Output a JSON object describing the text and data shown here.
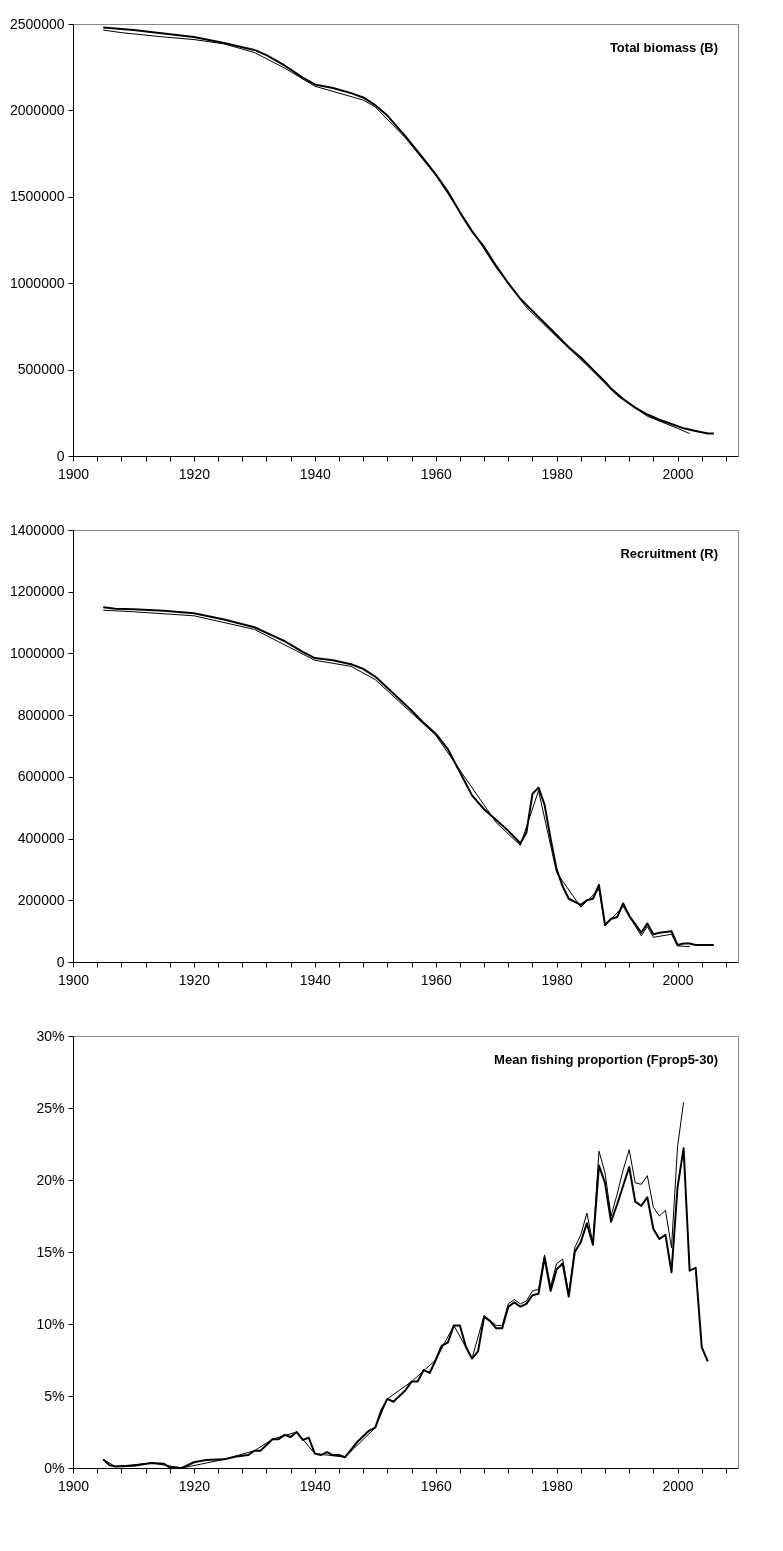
{
  "chart_data": [
    {
      "type": "line",
      "title": "Total biomass (B)",
      "xlim": [
        1900,
        2010
      ],
      "xticks": [
        1900,
        {
          "value": 1904,
          "label": null
        },
        {
          "value": 1908,
          "label": null
        },
        {
          "value": 1912,
          "label": null
        },
        {
          "value": 1916,
          "label": null
        },
        1920,
        {
          "value": 1924,
          "label": null
        },
        {
          "value": 1928,
          "label": null
        },
        {
          "value": 1932,
          "label": null
        },
        {
          "value": 1936,
          "label": null
        },
        1940,
        {
          "value": 1944,
          "label": null
        },
        {
          "value": 1948,
          "label": null
        },
        {
          "value": 1952,
          "label": null
        },
        {
          "value": 1956,
          "label": null
        },
        1960,
        {
          "value": 1964,
          "label": null
        },
        {
          "value": 1968,
          "label": null
        },
        {
          "value": 1972,
          "label": null
        },
        {
          "value": 1976,
          "label": null
        },
        1980,
        {
          "value": 1984,
          "label": null
        },
        {
          "value": 1988,
          "label": null
        },
        {
          "value": 1992,
          "label": null
        },
        {
          "value": 1996,
          "label": null
        },
        2000,
        {
          "value": 2004,
          "label": null
        },
        {
          "value": 2008,
          "label": null
        }
      ],
      "ylim": [
        0,
        2500000
      ],
      "yticks": [
        0,
        500000,
        1000000,
        1500000,
        2000000,
        2500000
      ],
      "grid": false,
      "marker": "none",
      "line_style": "solid",
      "series": [
        {
          "color": "#000000",
          "x": [
            1905,
            1910,
            1915,
            1920,
            1925,
            1930,
            1932,
            1935,
            1938,
            1940,
            1943,
            1946,
            1948,
            1950,
            1952,
            1955,
            1958,
            1960,
            1962,
            1964,
            1966,
            1968,
            1970,
            1972,
            1974,
            1976,
            1978,
            1980,
            1982,
            1984,
            1986,
            1988,
            1989,
            1991,
            1993,
            1995,
            1997,
            1999,
            2001,
            2003,
            2005,
            2006
          ],
          "values": [
            2480000,
            2465000,
            2445000,
            2425000,
            2390000,
            2350000,
            2320000,
            2260000,
            2190000,
            2150000,
            2130000,
            2100000,
            2075000,
            2030000,
            1970000,
            1850000,
            1720000,
            1630000,
            1530000,
            1410000,
            1300000,
            1210000,
            1100000,
            1000000,
            910000,
            840000,
            770000,
            700000,
            630000,
            570000,
            500000,
            430000,
            390000,
            330000,
            280000,
            240000,
            210000,
            185000,
            160000,
            145000,
            130000,
            130000
          ]
        },
        {
          "color": "#000000",
          "x": [
            1905,
            1908,
            1915,
            1920,
            1925,
            1930,
            1935,
            1940,
            1945,
            1948,
            1950,
            1955,
            1960,
            1965,
            1970,
            1975,
            1980,
            1985,
            1990,
            1995,
            2000,
            2002
          ],
          "values": [
            2465000,
            2450000,
            2425000,
            2410000,
            2385000,
            2335000,
            2245000,
            2140000,
            2090000,
            2060000,
            2020000,
            1840000,
            1625000,
            1360000,
            1090000,
            860000,
            690000,
            525000,
            350000,
            230000,
            160000,
            130000
          ]
        }
      ]
    },
    {
      "type": "line",
      "title": "Recruitment (R)",
      "xlim": [
        1900,
        2010
      ],
      "xticks": [
        1900,
        {
          "value": 1904,
          "label": null
        },
        {
          "value": 1908,
          "label": null
        },
        {
          "value": 1912,
          "label": null
        },
        {
          "value": 1916,
          "label": null
        },
        1920,
        {
          "value": 1924,
          "label": null
        },
        {
          "value": 1928,
          "label": null
        },
        {
          "value": 1932,
          "label": null
        },
        {
          "value": 1936,
          "label": null
        },
        1940,
        {
          "value": 1944,
          "label": null
        },
        {
          "value": 1948,
          "label": null
        },
        {
          "value": 1952,
          "label": null
        },
        {
          "value": 1956,
          "label": null
        },
        1960,
        {
          "value": 1964,
          "label": null
        },
        {
          "value": 1968,
          "label": null
        },
        {
          "value": 1972,
          "label": null
        },
        {
          "value": 1976,
          "label": null
        },
        1980,
        {
          "value": 1984,
          "label": null
        },
        {
          "value": 1988,
          "label": null
        },
        {
          "value": 1992,
          "label": null
        },
        {
          "value": 1996,
          "label": null
        },
        2000,
        {
          "value": 2004,
          "label": null
        },
        {
          "value": 2008,
          "label": null
        }
      ],
      "ylim": [
        0,
        1400000
      ],
      "yticks": [
        0,
        200000,
        400000,
        600000,
        800000,
        1000000,
        1200000,
        1400000
      ],
      "grid": false,
      "marker": "none",
      "line_style": "solid",
      "series": [
        {
          "color": "#000000",
          "x": [
            1905,
            1907,
            1910,
            1915,
            1920,
            1925,
            1930,
            1935,
            1938,
            1940,
            1943,
            1946,
            1948,
            1950,
            1953,
            1956,
            1958,
            1960,
            1962,
            1964,
            1966,
            1968,
            1970,
            1972,
            1974,
            1975,
            1976,
            1977,
            1978,
            1979,
            1980,
            1981,
            1982,
            1984,
            1985,
            1986,
            1987,
            1988,
            1989,
            1990,
            1991,
            1992,
            1994,
            1995,
            1996,
            1997,
            1999,
            2000,
            2001,
            2002,
            2003,
            2006
          ],
          "values": [
            1150000,
            1145000,
            1143000,
            1138000,
            1130000,
            1110000,
            1085000,
            1040000,
            1005000,
            985000,
            978000,
            965000,
            950000,
            925000,
            870000,
            815000,
            775000,
            740000,
            690000,
            615000,
            540000,
            495000,
            460000,
            425000,
            385000,
            420000,
            545000,
            565000,
            510000,
            400000,
            300000,
            245000,
            205000,
            185000,
            200000,
            205000,
            250000,
            120000,
            140000,
            145000,
            190000,
            150000,
            95000,
            125000,
            90000,
            95000,
            100000,
            55000,
            60000,
            60000,
            55000,
            55000
          ]
        },
        {
          "color": "#000000",
          "x": [
            1905,
            1910,
            1920,
            1930,
            1940,
            1946,
            1950,
            1960,
            1970,
            1974,
            1977,
            1980,
            1984,
            1987,
            1988,
            1991,
            1994,
            1995,
            1996,
            1999,
            2000,
            2002
          ],
          "values": [
            1140000,
            1135000,
            1122000,
            1078000,
            978000,
            958000,
            915000,
            735000,
            452000,
            378000,
            555000,
            290000,
            178000,
            235000,
            118000,
            180000,
            85000,
            115000,
            80000,
            90000,
            52000,
            50000
          ]
        }
      ]
    },
    {
      "type": "line",
      "title": "Mean fishing proportion (Fprop5-30)",
      "xlim": [
        1900,
        2010
      ],
      "xticks": [
        1900,
        {
          "value": 1904,
          "label": null
        },
        {
          "value": 1908,
          "label": null
        },
        {
          "value": 1912,
          "label": null
        },
        {
          "value": 1916,
          "label": null
        },
        1920,
        {
          "value": 1924,
          "label": null
        },
        {
          "value": 1928,
          "label": null
        },
        {
          "value": 1932,
          "label": null
        },
        {
          "value": 1936,
          "label": null
        },
        1940,
        {
          "value": 1944,
          "label": null
        },
        {
          "value": 1948,
          "label": null
        },
        {
          "value": 1952,
          "label": null
        },
        {
          "value": 1956,
          "label": null
        },
        1960,
        {
          "value": 1964,
          "label": null
        },
        {
          "value": 1968,
          "label": null
        },
        {
          "value": 1972,
          "label": null
        },
        {
          "value": 1976,
          "label": null
        },
        1980,
        {
          "value": 1984,
          "label": null
        },
        {
          "value": 1988,
          "label": null
        },
        {
          "value": 1992,
          "label": null
        },
        {
          "value": 1996,
          "label": null
        },
        2000,
        {
          "value": 2004,
          "label": null
        },
        {
          "value": 2008,
          "label": null
        }
      ],
      "ylim": [
        0,
        30
      ],
      "yticks": [
        {
          "value": 0,
          "label": "0%"
        },
        {
          "value": 5,
          "label": "5%"
        },
        {
          "value": 10,
          "label": "10%"
        },
        {
          "value": 15,
          "label": "15%"
        },
        {
          "value": 20,
          "label": "20%"
        },
        {
          "value": 25,
          "label": "25%"
        },
        {
          "value": 30,
          "label": "30%"
        }
      ],
      "grid": false,
      "marker": "none",
      "line_style": "solid",
      "series": [
        {
          "color": "#000000",
          "x": [
            1905,
            1906,
            1907,
            1910,
            1913,
            1915,
            1916,
            1918,
            1920,
            1922,
            1925,
            1927,
            1929,
            1930,
            1931,
            1933,
            1934,
            1935,
            1936,
            1937,
            1938,
            1939,
            1940,
            1941,
            1942,
            1943,
            1944,
            1945,
            1947,
            1948,
            1949,
            1950,
            1951,
            1952,
            1953,
            1954,
            1955,
            1956,
            1957,
            1958,
            1959,
            1960,
            1961,
            1962,
            1963,
            1964,
            1965,
            1966,
            1967,
            1968,
            1969,
            1970,
            1971,
            1972,
            1973,
            1974,
            1975,
            1976,
            1977,
            1978,
            1979,
            1980,
            1981,
            1982,
            1983,
            1984,
            1985,
            1986,
            1987,
            1988,
            1989,
            1990,
            1991,
            1992,
            1993,
            1994,
            1995,
            1996,
            1997,
            1998,
            1999,
            2000,
            2001,
            2002,
            2003,
            2004,
            2005
          ],
          "values": [
            0.6,
            0.2,
            0.1,
            0.15,
            0.35,
            0.3,
            0.05,
            0.0,
            0.4,
            0.55,
            0.6,
            0.8,
            0.9,
            1.2,
            1.2,
            2.0,
            2.0,
            2.3,
            2.15,
            2.5,
            1.95,
            2.1,
            1.0,
            0.9,
            1.1,
            0.9,
            0.9,
            0.75,
            1.8,
            2.2,
            2.6,
            2.8,
            4.0,
            4.8,
            4.6,
            5.0,
            5.4,
            6.0,
            6.0,
            6.8,
            6.6,
            7.5,
            8.5,
            8.7,
            9.9,
            9.9,
            8.4,
            7.6,
            8.1,
            10.5,
            10.2,
            9.7,
            9.7,
            11.2,
            11.5,
            11.2,
            11.4,
            12.0,
            12.1,
            14.6,
            12.3,
            13.8,
            14.2,
            11.9,
            15.0,
            15.7,
            17.0,
            15.5,
            21.0,
            19.8,
            17.1,
            18.3,
            19.6,
            20.9,
            18.5,
            18.2,
            18.8,
            16.6,
            15.9,
            16.2,
            13.6,
            19.5,
            22.2,
            13.7,
            13.9,
            8.4,
            7.4
          ]
        },
        {
          "color": "#000000",
          "x": [
            1905,
            1907,
            1913,
            1918,
            1925,
            1930,
            1933,
            1937,
            1940,
            1945,
            1950,
            1952,
            1956,
            1960,
            1963,
            1966,
            1968,
            1970,
            1971,
            1972,
            1973,
            1974,
            1975,
            1976,
            1977,
            1978,
            1979,
            1980,
            1981,
            1982,
            1983,
            1984,
            1985,
            1986,
            1987,
            1988,
            1989,
            1990,
            1991,
            1992,
            1993,
            1994,
            1995,
            1996,
            1997,
            1998,
            1999,
            2000,
            2001
          ],
          "values": [
            0.6,
            0.1,
            0.35,
            0.0,
            0.6,
            1.2,
            2.0,
            2.5,
            1.0,
            0.75,
            2.8,
            4.8,
            6.0,
            7.5,
            9.9,
            7.6,
            10.6,
            9.9,
            9.9,
            11.4,
            11.7,
            11.4,
            11.6,
            12.3,
            12.4,
            14.8,
            12.6,
            14.2,
            14.5,
            12.1,
            15.3,
            16.2,
            17.7,
            15.6,
            22.0,
            20.5,
            17.5,
            19.0,
            20.7,
            22.1,
            19.8,
            19.7,
            20.3,
            18.1,
            17.5,
            17.9,
            15.3,
            22.3,
            25.4
          ]
        }
      ]
    }
  ]
}
